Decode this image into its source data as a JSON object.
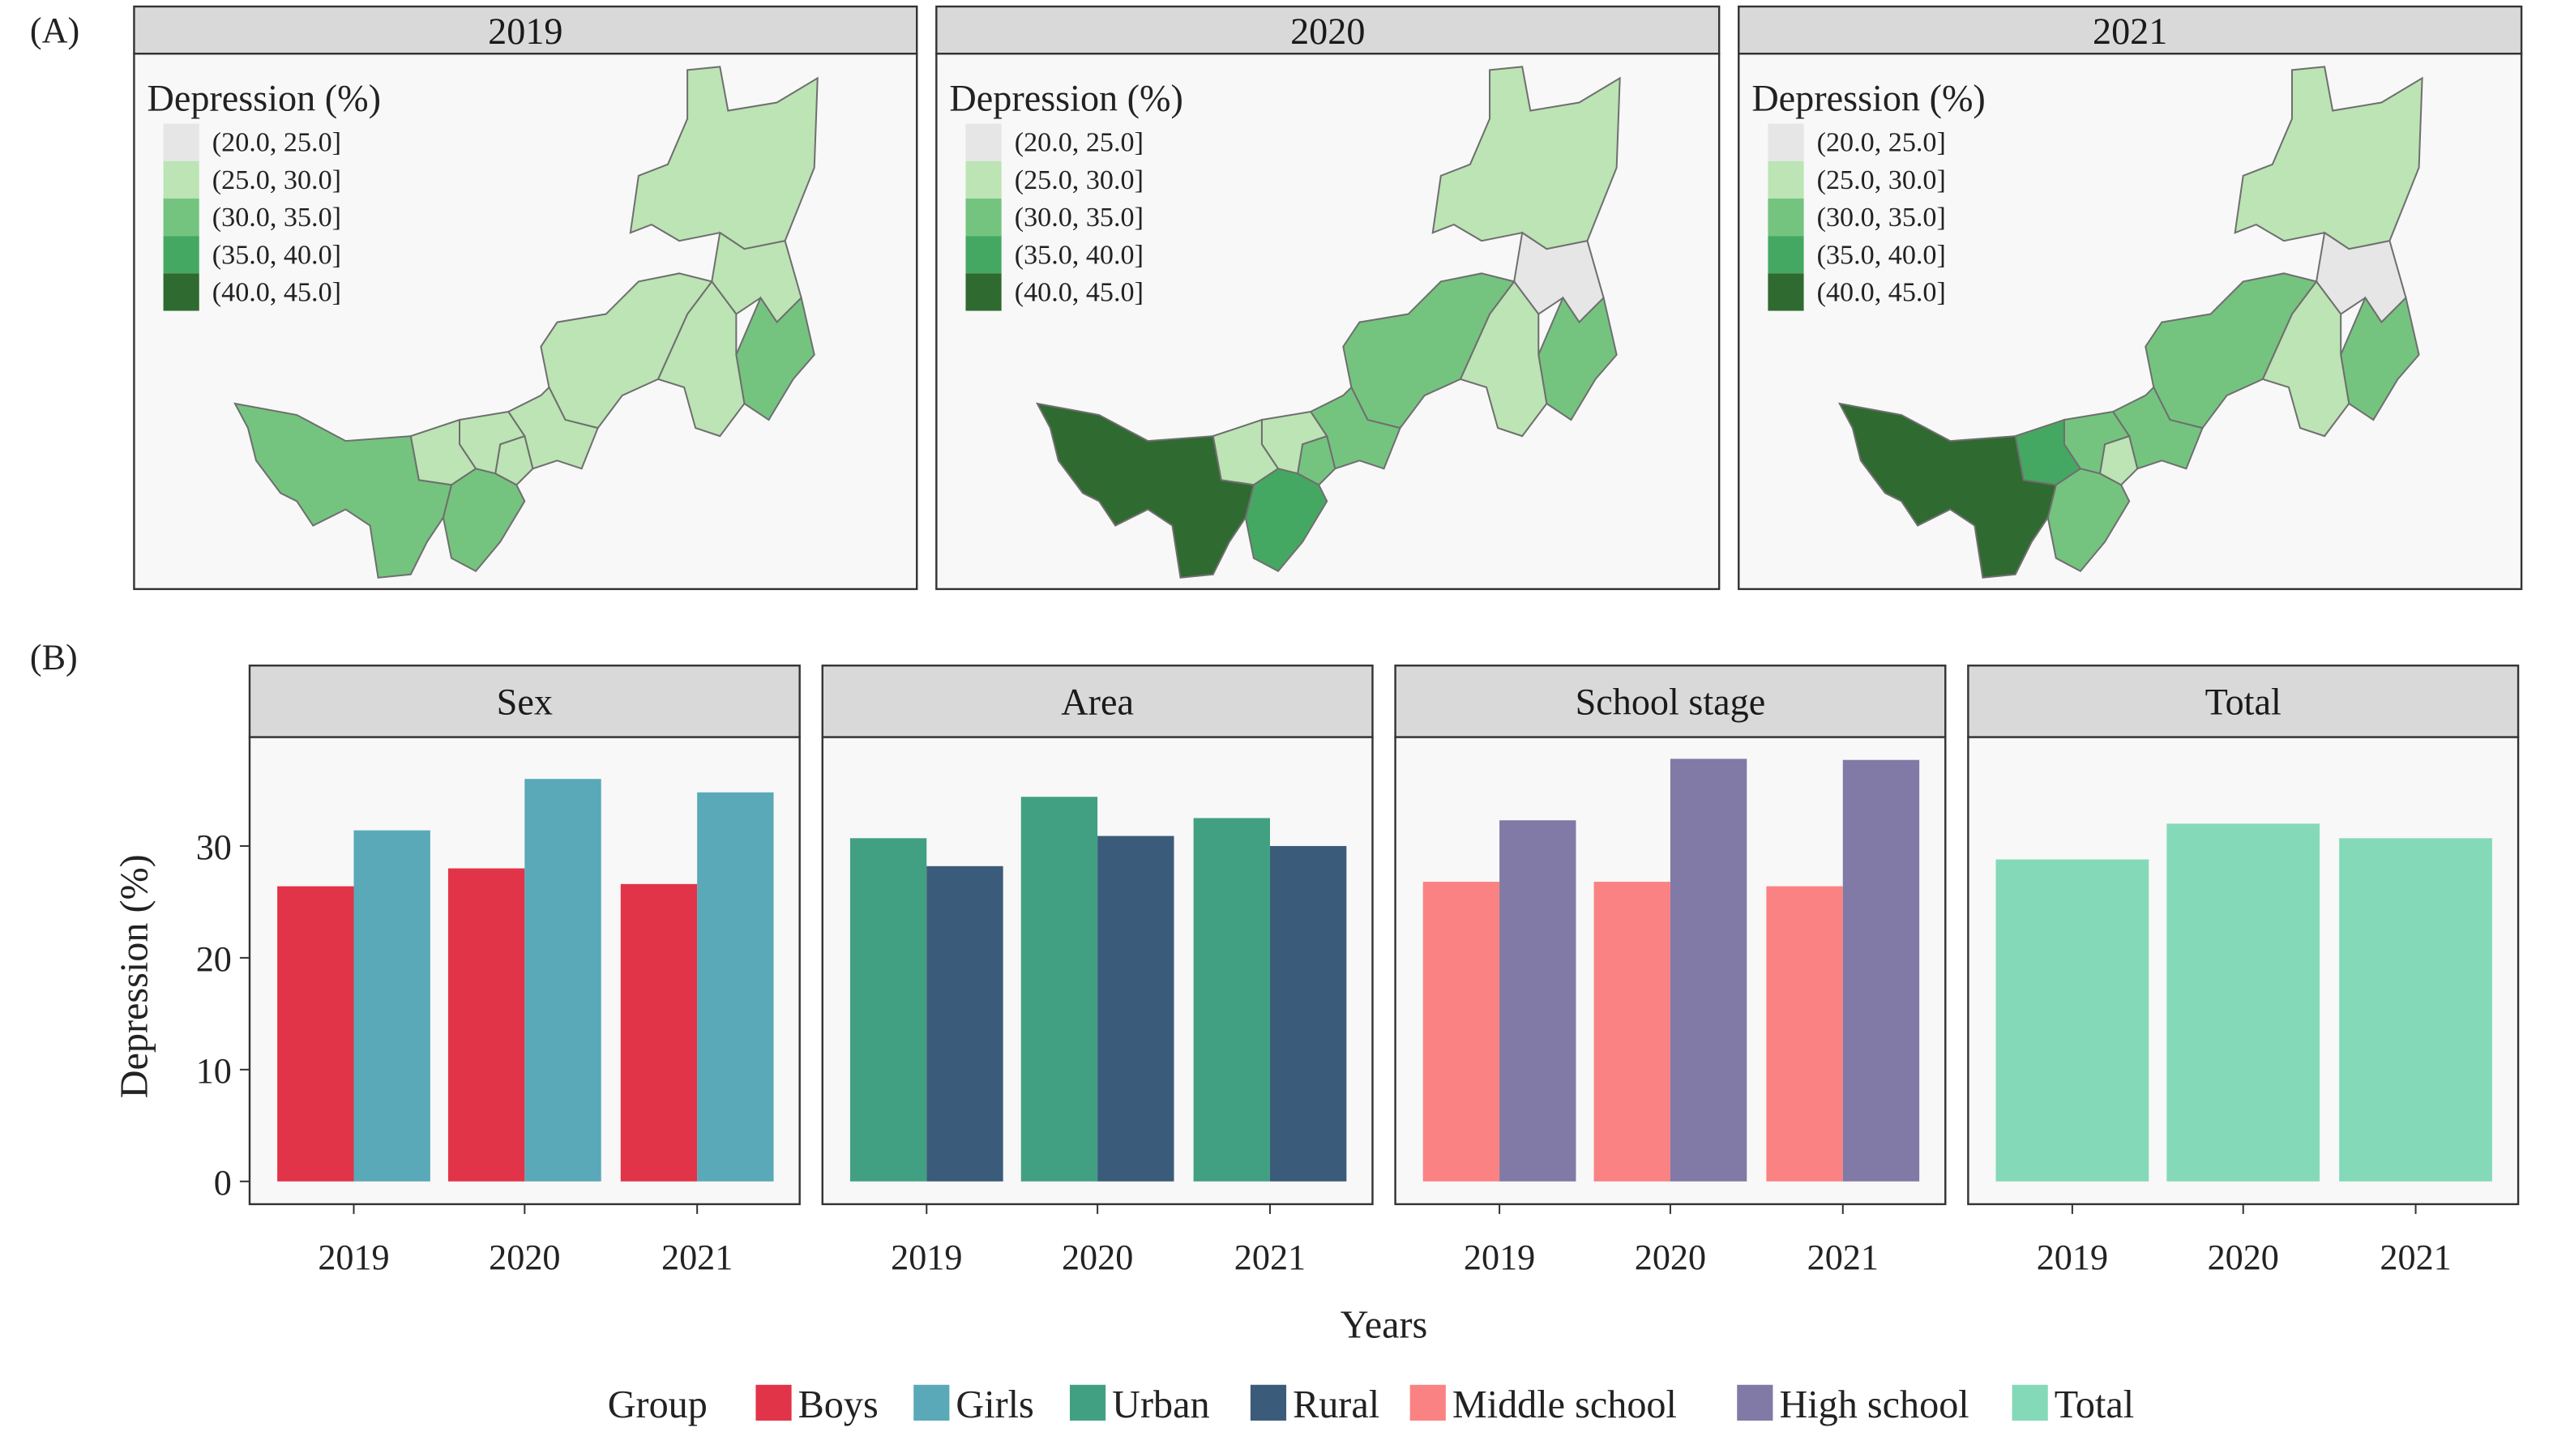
{
  "panel_labels": {
    "a": "(A)",
    "b": "(B)"
  },
  "chart_data": [
    {
      "type": "choropleth",
      "years": [
        "2019",
        "2020",
        "2021"
      ],
      "legend_title": "Depression (%)",
      "bins": [
        "(20.0, 25.0]",
        "(25.0, 30.0]",
        "(30.0, 35.0]",
        "(35.0, 40.0]",
        "(40.0, 45.0]"
      ],
      "bin_colors": [
        "#e6e6e6",
        "#bce4b4",
        "#74c47f",
        "#45a862",
        "#2f6a30"
      ],
      "region_bins": {
        "2019": [
          1,
          1,
          2,
          1,
          1,
          1,
          1,
          1,
          1,
          2,
          2
        ],
        "2020": [
          1,
          0,
          2,
          1,
          2,
          2,
          2,
          1,
          1,
          3,
          4
        ],
        "2021": [
          1,
          0,
          2,
          1,
          2,
          2,
          1,
          2,
          3,
          2,
          4
        ]
      }
    },
    {
      "type": "bar",
      "facets": [
        "Sex",
        "Area",
        "School stage",
        "Total"
      ],
      "categories": [
        "2019",
        "2020",
        "2021"
      ],
      "xlabel": "Years",
      "ylabel": "Depression (%)",
      "ylim": [
        0,
        40
      ],
      "yticks": [
        0,
        10,
        20,
        30
      ],
      "legend_title": "Group",
      "legend_position": "bottom",
      "series": [
        {
          "name": "Boys",
          "facet": "Sex",
          "color": "#e13448",
          "values": [
            26.4,
            28.0,
            26.6
          ]
        },
        {
          "name": "Girls",
          "facet": "Sex",
          "color": "#5aa9b8",
          "values": [
            31.4,
            36.0,
            34.8
          ]
        },
        {
          "name": "Urban",
          "facet": "Area",
          "color": "#42a082",
          "values": [
            30.7,
            34.4,
            32.5
          ]
        },
        {
          "name": "Rural",
          "facet": "Area",
          "color": "#3b5b7b",
          "values": [
            28.2,
            30.9,
            30.0
          ]
        },
        {
          "name": "Middle school",
          "facet": "School stage",
          "color": "#fb8282",
          "values": [
            26.8,
            26.8,
            26.4
          ]
        },
        {
          "name": "High school",
          "facet": "School stage",
          "color": "#8179a6",
          "values": [
            32.3,
            37.8,
            37.7
          ]
        },
        {
          "name": "Total",
          "facet": "Total",
          "color": "#84d9b9",
          "values": [
            28.8,
            32.0,
            30.7
          ]
        }
      ]
    }
  ]
}
